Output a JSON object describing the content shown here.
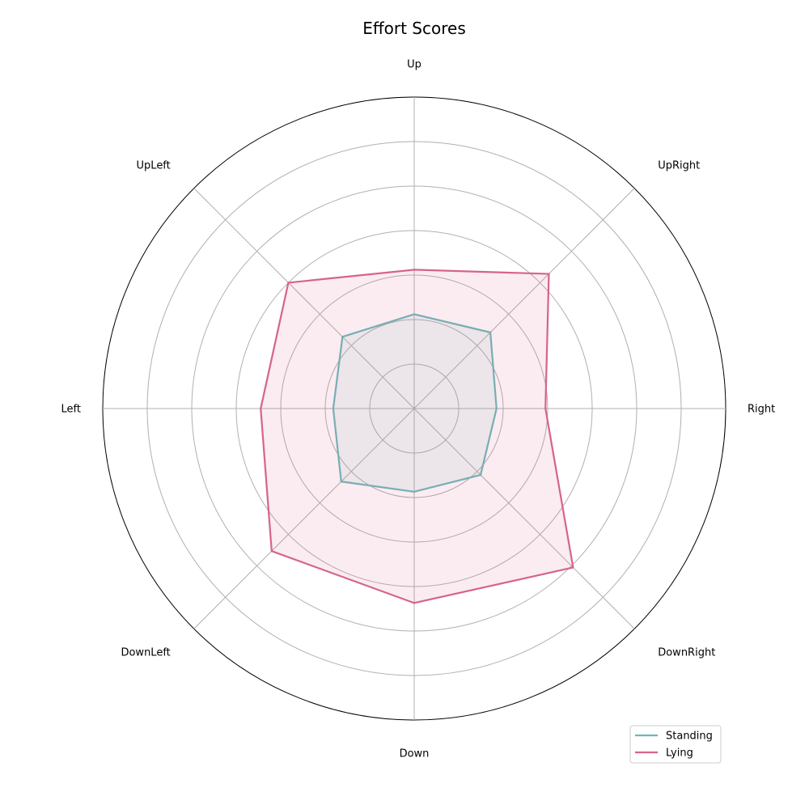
{
  "chart_data": {
    "type": "radar",
    "title": "Effort Scores",
    "axes": [
      "Up",
      "UpRight",
      "Right",
      "DownRight",
      "Down",
      "DownLeft",
      "Left",
      "UpLeft"
    ],
    "rmax": 7,
    "rings": [
      1,
      2,
      3,
      4,
      5,
      6,
      7
    ],
    "grid": true,
    "legend_position": "bottom-right",
    "series": [
      {
        "name": "Standing",
        "color": "#6bb9b9",
        "fill_opacity": 0.1,
        "values": [
          2.12,
          2.42,
          1.85,
          2.11,
          1.87,
          2.32,
          1.82,
          2.28
        ]
      },
      {
        "name": "Lying",
        "color": "#d6638d",
        "fill_opacity": 0.12,
        "values": [
          3.12,
          4.28,
          2.95,
          5.05,
          4.37,
          4.53,
          3.45,
          4.0
        ]
      }
    ]
  }
}
